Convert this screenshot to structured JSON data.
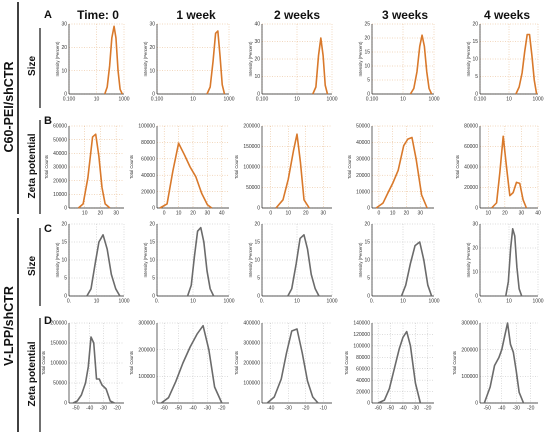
{
  "headers": [
    "Time: 0",
    "1 week",
    "2 weeks",
    "3 weeks",
    "4 weeks"
  ],
  "groups": [
    "C60-PEI/shCTR",
    "V-LPP/shCTR"
  ],
  "row_labels": [
    "Size",
    "Zeta potential",
    "Size",
    "Zeta potential"
  ],
  "panel_letters": [
    "A",
    "B",
    "C",
    "D"
  ],
  "colors": {
    "orange": "#d9792b",
    "gray": "#6b6b6b",
    "grid": "#e0a060",
    "grid_gray": "#aaaaaa"
  },
  "chart_data": [
    {
      "row": 0,
      "col": 0,
      "type": "line",
      "xscale": "log",
      "xlim": [
        0.1,
        1000
      ],
      "xticks": [
        "0.100",
        "10",
        "1000"
      ],
      "xtick_vals": [
        0.1,
        10,
        1000
      ],
      "ylim": [
        0,
        30
      ],
      "yticks": [
        0,
        10,
        20,
        30
      ],
      "ylabel": "Intensity (Percent)",
      "x": [
        40,
        60,
        90,
        130,
        190,
        260,
        370,
        520,
        750
      ],
      "y": [
        0,
        3,
        12,
        24,
        29,
        24,
        10,
        2,
        0
      ]
    },
    {
      "row": 0,
      "col": 1,
      "type": "line",
      "xscale": "log",
      "xlim": [
        0.1,
        1000
      ],
      "xticks": [
        "0.100",
        "10",
        "1000"
      ],
      "xtick_vals": [
        0.1,
        10,
        1000
      ],
      "ylim": [
        0,
        30
      ],
      "yticks": [
        0,
        10,
        20,
        30
      ],
      "ylabel": "Intensity (Percent)",
      "x": [
        60,
        90,
        130,
        180,
        240,
        320,
        420,
        560
      ],
      "y": [
        0,
        3,
        14,
        26,
        27,
        16,
        4,
        0
      ]
    },
    {
      "row": 0,
      "col": 2,
      "type": "line",
      "xscale": "log",
      "xlim": [
        0.1,
        1000
      ],
      "xticks": [
        "0.100",
        "10",
        "1000"
      ],
      "xtick_vals": [
        0.1,
        10,
        1000
      ],
      "ylim": [
        0,
        40
      ],
      "yticks": [
        0,
        10,
        20,
        30,
        40
      ],
      "ylabel": "Intensity (Percent)",
      "x": [
        80,
        120,
        170,
        230,
        310,
        410,
        550
      ],
      "y": [
        0,
        4,
        22,
        32,
        22,
        5,
        0
      ]
    },
    {
      "row": 0,
      "col": 3,
      "type": "line",
      "xscale": "log",
      "xlim": [
        0.1,
        1000
      ],
      "xticks": [
        "0.100",
        "10",
        "1000"
      ],
      "xtick_vals": [
        0.1,
        10,
        1000
      ],
      "ylim": [
        0,
        25
      ],
      "yticks": [
        0,
        5,
        10,
        15,
        20,
        25
      ],
      "ylabel": "Intensity (Percent)",
      "x": [
        30,
        50,
        80,
        120,
        170,
        240,
        340,
        480,
        700
      ],
      "y": [
        0,
        2,
        8,
        17,
        21,
        17,
        8,
        2,
        0
      ]
    },
    {
      "row": 0,
      "col": 4,
      "type": "line",
      "xscale": "log",
      "xlim": [
        0.1,
        1000
      ],
      "xticks": [
        "0.100",
        "10",
        "1000"
      ],
      "xtick_vals": [
        0.1,
        10,
        1000
      ],
      "ylim": [
        0,
        20
      ],
      "yticks": [
        0,
        5,
        10,
        15,
        20
      ],
      "ylabel": "Intensity (Percent)",
      "x": [
        30,
        50,
        80,
        120,
        180,
        260,
        380,
        550,
        800
      ],
      "y": [
        0,
        2,
        6,
        12,
        17,
        17,
        11,
        4,
        0
      ]
    },
    {
      "row": 1,
      "col": 0,
      "type": "line",
      "xscale": "linear",
      "xlim": [
        0,
        35
      ],
      "xticks": [
        "10",
        "20",
        "30"
      ],
      "xtick_vals": [
        10,
        20,
        30
      ],
      "ylim": [
        0,
        60000
      ],
      "yticks": [
        0,
        10000,
        20000,
        30000,
        40000,
        50000,
        60000
      ],
      "ylabel": "Total Counts",
      "x": [
        6,
        9,
        12,
        15,
        17,
        19,
        21,
        23,
        26
      ],
      "y": [
        0,
        3000,
        22000,
        52000,
        54000,
        38000,
        15000,
        3000,
        0
      ]
    },
    {
      "row": 1,
      "col": 1,
      "type": "line",
      "xscale": "linear",
      "xlim": [
        -5,
        45
      ],
      "xticks": [
        "0",
        "10",
        "20",
        "30",
        "40"
      ],
      "xtick_vals": [
        0,
        10,
        20,
        30,
        40
      ],
      "ylim": [
        0,
        100000
      ],
      "yticks": [
        0,
        20000,
        40000,
        60000,
        80000,
        100000
      ],
      "ylabel": "Total Counts",
      "x": [
        -3,
        2,
        6,
        10,
        14,
        18,
        22,
        26,
        30,
        33
      ],
      "y": [
        0,
        5000,
        45000,
        79000,
        65000,
        50000,
        38000,
        18000,
        4000,
        0
      ]
    },
    {
      "row": 1,
      "col": 2,
      "type": "line",
      "xscale": "linear",
      "xlim": [
        -5,
        35
      ],
      "xticks": [
        "0",
        "10",
        "20",
        "30"
      ],
      "xtick_vals": [
        0,
        10,
        20,
        30
      ],
      "ylim": [
        0,
        200000
      ],
      "yticks": [
        0,
        50000,
        100000,
        150000,
        200000
      ],
      "ylabel": "Total Counts",
      "x": [
        3,
        7,
        10,
        13,
        15,
        17,
        19,
        22
      ],
      "y": [
        0,
        20000,
        70000,
        140000,
        180000,
        110000,
        20000,
        0
      ]
    },
    {
      "row": 1,
      "col": 3,
      "type": "line",
      "xscale": "linear",
      "xlim": [
        -5,
        40
      ],
      "xticks": [
        "0",
        "10",
        "20",
        "30"
      ],
      "xtick_vals": [
        0,
        10,
        20,
        30
      ],
      "ylim": [
        0,
        50000
      ],
      "yticks": [
        0,
        10000,
        20000,
        30000,
        40000,
        50000
      ],
      "ylabel": "Total Counts",
      "x": [
        -2,
        3,
        7,
        10,
        14,
        18,
        21,
        24,
        27,
        31,
        35
      ],
      "y": [
        0,
        3000,
        10000,
        15000,
        23000,
        38000,
        42000,
        43000,
        30000,
        8000,
        0
      ]
    },
    {
      "row": 1,
      "col": 4,
      "type": "line",
      "xscale": "linear",
      "xlim": [
        5,
        40
      ],
      "xticks": [
        "10",
        "20",
        "30",
        "40"
      ],
      "xtick_vals": [
        10,
        20,
        30,
        40
      ],
      "ylim": [
        0,
        80000
      ],
      "yticks": [
        0,
        20000,
        40000,
        60000,
        80000
      ],
      "ylabel": "Total Counts",
      "x": [
        12,
        15,
        17,
        19,
        21,
        23,
        25,
        27,
        29,
        31,
        33
      ],
      "y": [
        0,
        5000,
        35000,
        70000,
        40000,
        12000,
        15000,
        25000,
        24000,
        8000,
        0
      ]
    },
    {
      "row": 2,
      "col": 0,
      "type": "line",
      "xscale": "log",
      "xlim": [
        0.1,
        1000
      ],
      "xticks": [
        "0.",
        "10",
        "1000"
      ],
      "xtick_vals": [
        0.1,
        10,
        1000
      ],
      "ylim": [
        0,
        20
      ],
      "yticks": [
        0,
        5,
        10,
        15,
        20
      ],
      "ylabel": "Intensity (Percent)",
      "x": [
        2,
        4,
        8,
        15,
        30,
        60,
        120,
        250,
        500
      ],
      "y": [
        0,
        2,
        9,
        15,
        17,
        13,
        6,
        2,
        0
      ]
    },
    {
      "row": 2,
      "col": 1,
      "type": "line",
      "xscale": "log",
      "xlim": [
        0.1,
        1000
      ],
      "xticks": [
        "0.",
        "10",
        "1000"
      ],
      "xtick_vals": [
        0.1,
        10,
        1000
      ],
      "ylim": [
        0,
        20
      ],
      "yticks": [
        0,
        5,
        10,
        15,
        20
      ],
      "ylabel": "Intensity (Percent)",
      "x": [
        5,
        8,
        12,
        18,
        27,
        40,
        60,
        90,
        140
      ],
      "y": [
        0,
        3,
        11,
        18,
        19,
        15,
        7,
        2,
        0
      ]
    },
    {
      "row": 2,
      "col": 2,
      "type": "line",
      "xscale": "log",
      "xlim": [
        0.1,
        1000
      ],
      "xticks": [
        "0.",
        "10",
        "1000"
      ],
      "xtick_vals": [
        0.1,
        10,
        1000
      ],
      "ylim": [
        0,
        20
      ],
      "yticks": [
        0,
        5,
        10,
        15,
        20
      ],
      "ylabel": "Intensity (Percent)",
      "x": [
        3,
        5,
        9,
        15,
        25,
        40,
        65,
        110,
        180
      ],
      "y": [
        0,
        2,
        9,
        16,
        17,
        13,
        6,
        2,
        0
      ]
    },
    {
      "row": 2,
      "col": 3,
      "type": "line",
      "xscale": "log",
      "xlim": [
        0.1,
        1000
      ],
      "xticks": [
        "0.",
        "10",
        "1000"
      ],
      "xtick_vals": [
        0.1,
        10,
        1000
      ],
      "ylim": [
        0,
        20
      ],
      "yticks": [
        0,
        5,
        10,
        15,
        20
      ],
      "ylabel": "Intensity (Percent)",
      "x": [
        8,
        15,
        30,
        60,
        120,
        220,
        400,
        700
      ],
      "y": [
        0,
        3,
        9,
        14,
        15,
        10,
        3,
        0
      ]
    },
    {
      "row": 2,
      "col": 4,
      "type": "line",
      "xscale": "log",
      "xlim": [
        0.1,
        1000
      ],
      "xticks": [
        "0.",
        "10",
        "1000"
      ],
      "xtick_vals": [
        0.1,
        10,
        1000
      ],
      "ylim": [
        0,
        30
      ],
      "yticks": [
        0,
        10,
        20,
        30
      ],
      "ylabel": "Intensity (Percent)",
      "x": [
        6,
        9,
        13,
        18,
        25,
        35,
        50,
        75
      ],
      "y": [
        0,
        6,
        20,
        28,
        25,
        12,
        3,
        0
      ]
    },
    {
      "row": 3,
      "col": 0,
      "type": "line",
      "xscale": "linear",
      "xlim": [
        -55,
        -15
      ],
      "xticks": [
        "-50",
        "-40",
        "-30",
        "-20"
      ],
      "xtick_vals": [
        -50,
        -40,
        -30,
        -20
      ],
      "ylim": [
        0,
        200000
      ],
      "yticks": [
        0,
        50000,
        100000,
        150000,
        200000
      ],
      "ylabel": "Total Counts",
      "x": [
        -52,
        -49,
        -46,
        -43,
        -41,
        -39,
        -37,
        -35,
        -33,
        -31,
        -28,
        -25,
        -22
      ],
      "y": [
        0,
        5000,
        20000,
        50000,
        90000,
        165000,
        150000,
        60000,
        60000,
        45000,
        35000,
        5000,
        0
      ]
    },
    {
      "row": 3,
      "col": 1,
      "type": "line",
      "xscale": "linear",
      "xlim": [
        -65,
        -15
      ],
      "xticks": [
        "-60",
        "-50",
        "-40",
        "-30",
        "-20"
      ],
      "xtick_vals": [
        -60,
        -50,
        -40,
        -30,
        -20
      ],
      "ylim": [
        0,
        300000
      ],
      "yticks": [
        0,
        100000,
        200000,
        300000
      ],
      "ylabel": "Total Counts",
      "x": [
        -62,
        -57,
        -52,
        -47,
        -42,
        -37,
        -33,
        -29,
        -25,
        -20
      ],
      "y": [
        0,
        20000,
        80000,
        150000,
        210000,
        260000,
        290000,
        200000,
        60000,
        0
      ]
    },
    {
      "row": 3,
      "col": 2,
      "type": "line",
      "xscale": "linear",
      "xlim": [
        -45,
        -5
      ],
      "xticks": [
        "-40",
        "-30",
        "-20",
        "-10"
      ],
      "xtick_vals": [
        -40,
        -30,
        -20,
        -10
      ],
      "ylim": [
        0,
        400000
      ],
      "yticks": [
        0,
        100000,
        200000,
        300000,
        400000
      ],
      "ylabel": "Total Counts",
      "x": [
        -42,
        -38,
        -34,
        -31,
        -28,
        -25,
        -22,
        -19,
        -16,
        -13
      ],
      "y": [
        0,
        30000,
        120000,
        250000,
        360000,
        370000,
        250000,
        110000,
        30000,
        0
      ]
    },
    {
      "row": 3,
      "col": 3,
      "type": "line",
      "xscale": "linear",
      "xlim": [
        -65,
        -15
      ],
      "xticks": [
        "-60",
        "-50",
        "-40",
        "-30",
        "-20"
      ],
      "xtick_vals": [
        -60,
        -50,
        -40,
        -30,
        -20
      ],
      "ylim": [
        0,
        140000
      ],
      "yticks": [
        0,
        20000,
        40000,
        60000,
        80000,
        100000,
        120000,
        140000
      ],
      "ylabel": "Total Counts",
      "x": [
        -60,
        -55,
        -51,
        -47,
        -43,
        -40,
        -37,
        -34,
        -30,
        -26
      ],
      "y": [
        0,
        5000,
        25000,
        60000,
        95000,
        115000,
        125000,
        100000,
        35000,
        0
      ]
    },
    {
      "row": 3,
      "col": 4,
      "type": "line",
      "xscale": "linear",
      "xlim": [
        -55,
        -15
      ],
      "xticks": [
        "-50",
        "-40",
        "-30",
        "-20"
      ],
      "xtick_vals": [
        -50,
        -40,
        -30,
        -20
      ],
      "ylim": [
        0,
        300000
      ],
      "yticks": [
        0,
        100000,
        200000,
        300000
      ],
      "ylabel": "Total Counts",
      "x": [
        -52,
        -48,
        -45,
        -42,
        -40,
        -38,
        -36,
        -34,
        -32,
        -30,
        -28,
        -25
      ],
      "y": [
        0,
        60000,
        140000,
        170000,
        200000,
        250000,
        300000,
        220000,
        190000,
        120000,
        40000,
        0
      ]
    }
  ]
}
